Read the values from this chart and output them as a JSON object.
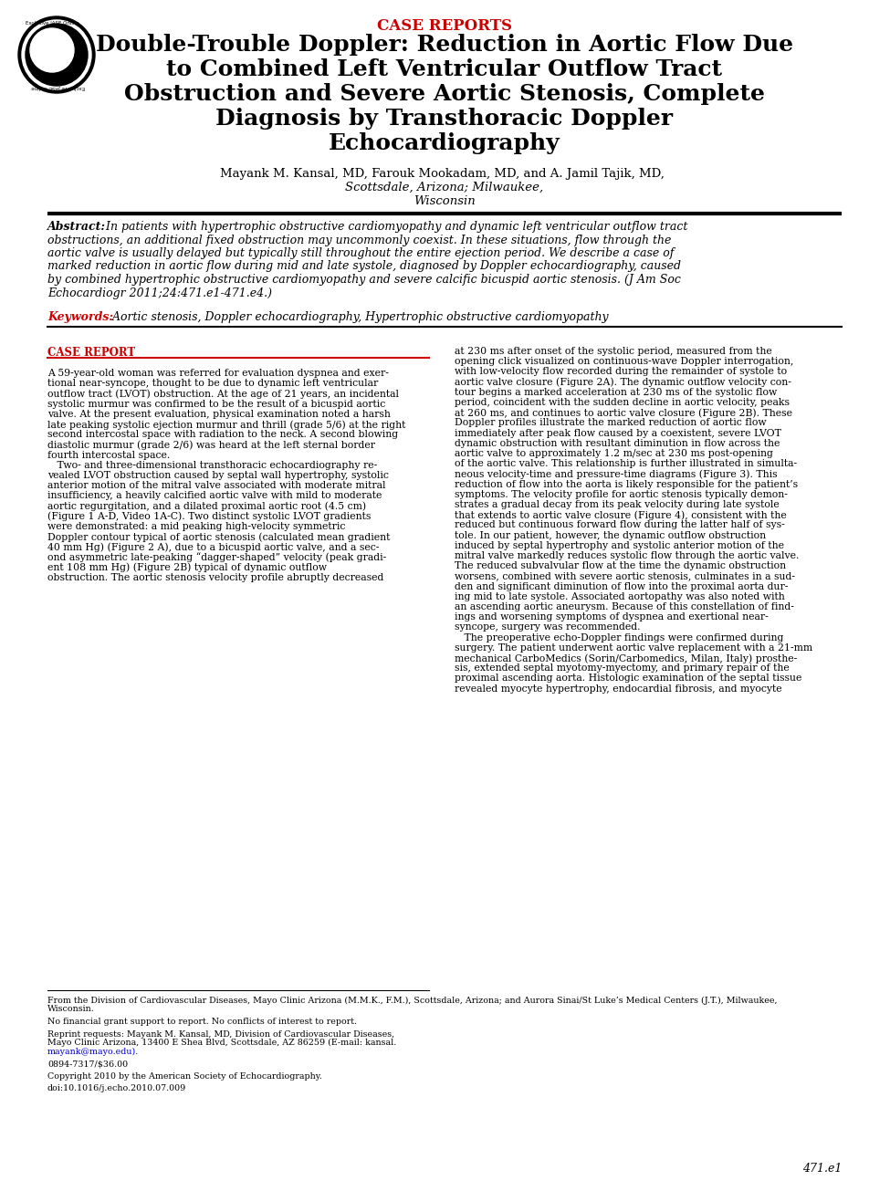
{
  "background_color": "#ffffff",
  "header_label": "CASE REPORTS",
  "header_color": "#cc0000",
  "title_lines": [
    "Double-Trouble Doppler: Reduction in Aortic Flow Due",
    "to Combined Left Ventricular Outflow Tract",
    "Obstruction and Severe Aortic Stenosis, Complete",
    "Diagnosis by Transthoracic Doppler",
    "Echocardiography"
  ],
  "authors_normal": "Mayank M. Kansal, MD, Farouk Mookadam, MD, and A. Jamil Tajik, MD, ",
  "authors_italic": "Scottsdale, Arizona; Milwaukee,",
  "authors_italic2": "Wisconsin",
  "abstract_lines": [
    "Abstract: In patients with hypertrophic obstructive cardiomyopathy and dynamic left ventricular outflow tract",
    "obstructions, an additional fixed obstruction may uncommonly coexist. In these situations, flow through the",
    "aortic valve is usually delayed but typically still throughout the entire ejection period. We describe a case of",
    "marked reduction in aortic flow during mid and late systole, diagnosed by Doppler echocardiography, caused",
    "by combined hypertrophic obstructive cardiomyopathy and severe calcific bicuspid aortic stenosis. (J Am Soc",
    "Echocardiogr 2011;24:471.e1-471.e4.)"
  ],
  "keywords_label": "Keywords:",
  "keywords_text": " Aortic stenosis, Doppler echocardiography, Hypertrophic obstructive cardiomyopathy",
  "section_label": "CASE REPORT",
  "section_color": "#cc0000",
  "col1_text": "A 59-year-old woman was referred for evaluation dyspnea and exer-\ntional near-syncope, thought to be due to dynamic left ventricular\noutflow tract (LVOT) obstruction. At the age of 21 years, an incidental\nsystolic murmur was confirmed to be the result of a bicuspid aortic\nvalve. At the present evaluation, physical examination noted a harsh\nlate peaking systolic ejection murmur and thrill (grade 5/6) at the right\nsecond intercostal space with radiation to the neck. A second blowing\ndiastolic murmur (grade 2/6) was heard at the left sternal border\nfourth intercostal space.\n   Two- and three-dimensional transthoracic echocardiography re-\nvealed LVOT obstruction caused by septal wall hypertrophy, systolic\nanterior motion of the mitral valve associated with moderate mitral\ninsufficiency, a heavily calcified aortic valve with mild to moderate\naortic regurgitation, and a dilated proximal aortic root (4.5 cm)\n(Figure 1 A-D, Video 1A-C). Two distinct systolic LVOT gradients\nwere demonstrated: a mid peaking high-velocity symmetric\nDoppler contour typical of aortic stenosis (calculated mean gradient\n40 mm Hg) (Figure 2 A), due to a bicuspid aortic valve, and a sec-\nond asymmetric late-peaking “dagger-shaped” velocity (peak gradi-\nent 108 mm Hg) (Figure 2B) typical of dynamic outflow\nobstruction. The aortic stenosis velocity profile abruptly decreased",
  "col2_text": "at 230 ms after onset of the systolic period, measured from the\nopening click visualized on continuous-wave Doppler interrogation,\nwith low-velocity flow recorded during the remainder of systole to\naortic valve closure (Figure 2A). The dynamic outflow velocity con-\ntour begins a marked acceleration at 230 ms of the systolic flow\nperiod, coincident with the sudden decline in aortic velocity, peaks\nat 260 ms, and continues to aortic valve closure (Figure 2B). These\nDoppler profiles illustrate the marked reduction of aortic flow\nimmediately after peak flow caused by a coexistent, severe LVOT\ndynamic obstruction with resultant diminution in flow across the\naortic valve to approximately 1.2 m/sec at 230 ms post-opening\nof the aortic valve. This relationship is further illustrated in simulta-\nneous velocity-time and pressure-time diagrams (Figure 3). This\nreduction of flow into the aorta is likely responsible for the patient’s\nsymptoms. The velocity profile for aortic stenosis typically demon-\nstrates a gradual decay from its peak velocity during late systole\nthat extends to aortic valve closure (Figure 4), consistent with the\nreduced but continuous forward flow during the latter half of sys-\ntole. In our patient, however, the dynamic outflow obstruction\ninduced by septal hypertrophy and systolic anterior motion of the\nmitral valve markedly reduces systolic flow through the aortic valve.\nThe reduced subvalvular flow at the time the dynamic obstruction\nworsens, combined with severe aortic stenosis, culminates in a sud-\nden and significant diminution of flow into the proximal aorta dur-\ning mid to late systole. Associated aortopathy was also noted with\nan ascending aortic aneurysm. Because of this constellation of find-\nings and worsening symptoms of dyspnea and exertional near-\nsyncope, surgery was recommended.\n   The preoperative echo-Doppler findings were confirmed during\nsurgery. The patient underwent aortic valve replacement with a 21-mm\nmechanical CarboMedics (Sorin/Carbomedics, Milan, Italy) prosthe-\nsis, extended septal myotomy-myectomy, and primary repair of the\nproximal ascending aorta. Histologic examination of the septal tissue\nrevealed myocyte hypertrophy, endocardial fibrosis, and myocyte",
  "footer_line1": "From the Division of Cardiovascular Diseases, Mayo Clinic Arizona (M.M.K., F.M.), Scottsdale, Arizona; and Aurora Sinai/St Luke’s Medical Centers (J.T.), Milwaukee,",
  "footer_line2": "Wisconsin.",
  "footer_line3": "",
  "footer_line4": "No financial grant support to report. No conflicts of interest to report.",
  "footer_line5": "",
  "footer_line6": "Reprint requests: Mayank M. Kansal, MD, Division of Cardiovascular Diseases, Mayo Clinic Arizona, 13400 E Shea Blvd, Scottsdale, AZ 86259 (E-mail: kansal.",
  "footer_line6b": "mayank@mayo.edu).",
  "footer_line7": "",
  "footer_line8": "0894-7317/$36.00",
  "footer_line9": "",
  "footer_line10": "Copyright 2010 by the American Society of Echocardiography.",
  "footer_line11": "",
  "footer_line12": "doi:10.1016/j.echo.2010.07.009",
  "page_number": "471.e1",
  "figure_refs_color": "#0000cc",
  "col1_fig_refs": [
    "Figure 1",
    "Video 1A-C",
    "Figure 2",
    "Figure 2B"
  ],
  "col2_fig_refs": [
    "Figure 2A",
    "Figure 2B",
    "Figure 3",
    "Figure 4"
  ]
}
